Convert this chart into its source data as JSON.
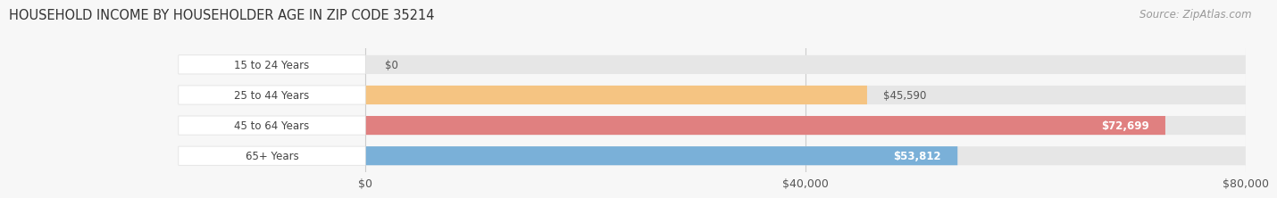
{
  "title": "HOUSEHOLD INCOME BY HOUSEHOLDER AGE IN ZIP CODE 35214",
  "source": "Source: ZipAtlas.com",
  "categories": [
    "15 to 24 Years",
    "25 to 44 Years",
    "45 to 64 Years",
    "65+ Years"
  ],
  "values": [
    0,
    45590,
    72699,
    53812
  ],
  "bar_colors": [
    "#f4a0b0",
    "#f5c482",
    "#e08080",
    "#7ab0d8"
  ],
  "max_value": 80000,
  "x_ticks": [
    0,
    40000,
    80000
  ],
  "x_tick_labels": [
    "$0",
    "$40,000",
    "$80,000"
  ],
  "background_color": "#f7f7f7",
  "bar_track_color": "#e6e6e6",
  "title_fontsize": 10.5,
  "source_fontsize": 8.5,
  "bar_height": 0.62,
  "label_pill_color": "#ffffff",
  "label_text_color": "#444444",
  "value_label_dark": "#555555",
  "value_label_light": "#ffffff"
}
